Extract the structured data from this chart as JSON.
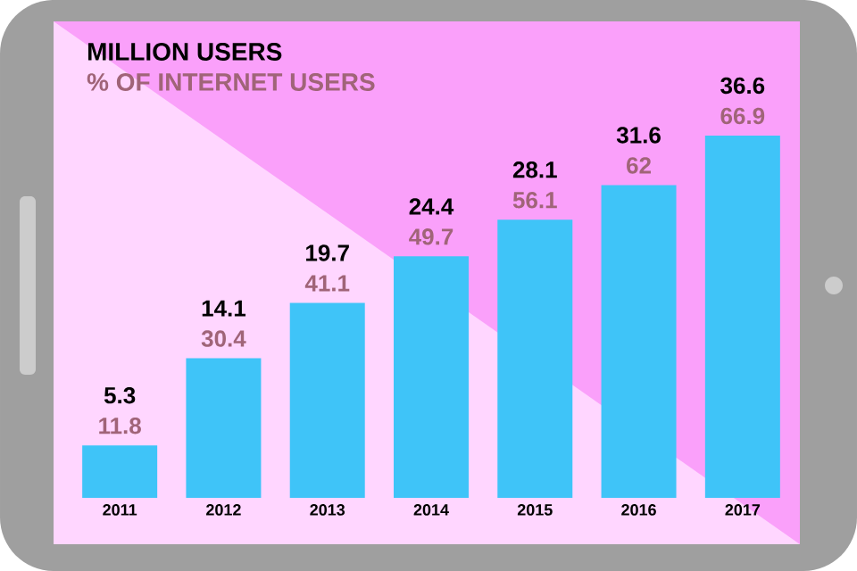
{
  "chart_data": {
    "type": "bar",
    "title": "MILLION USERS",
    "subtitle": "% OF INTERNET USERS",
    "categories": [
      "2011",
      "2012",
      "2013",
      "2014",
      "2015",
      "2016",
      "2017"
    ],
    "series": [
      {
        "color": "#3fc4f8",
        "values": [
          5.3,
          14.1,
          19.7,
          24.4,
          28.1,
          31.6,
          36.6
        ]
      }
    ],
    "data_labels": true,
    "annotations": [
      "11.8",
      "30.4",
      "41.1",
      "49.7",
      "56.1",
      "62",
      "66.9"
    ]
  }
}
